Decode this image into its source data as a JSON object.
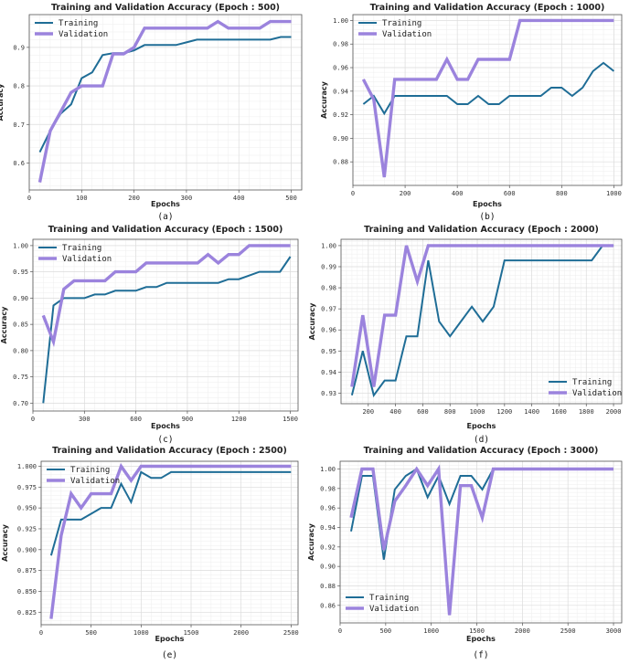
{
  "colors": {
    "training": "#1f6d96",
    "validation": "#9b83dd"
  },
  "chart_data": [
    {
      "type": "line",
      "panel": "(a)",
      "title": "Training and Validation Accuracy (Epoch : 500)",
      "xlabel": "Epochs",
      "ylabel": "Accuracy",
      "xlim": [
        0,
        520
      ],
      "ylim": [
        0.53,
        0.985
      ],
      "xticks": [
        0,
        100,
        200,
        300,
        400,
        500
      ],
      "xtick_labels": [
        "0",
        "100",
        "200",
        "300",
        "400",
        "500"
      ],
      "yticks": [
        0.6,
        0.7,
        0.8,
        0.9
      ],
      "ytick_labels": [
        "0.6",
        "0.7",
        "0.8",
        "0.9"
      ],
      "legend": "top-left",
      "series": [
        {
          "name": "Training",
          "key": "training",
          "x": [
            20,
            40,
            60,
            80,
            100,
            120,
            140,
            160,
            180,
            200,
            220,
            240,
            260,
            280,
            300,
            320,
            340,
            360,
            380,
            400,
            420,
            440,
            460,
            480,
            500
          ],
          "y": [
            0.628,
            0.683,
            0.728,
            0.752,
            0.82,
            0.835,
            0.88,
            0.885,
            0.885,
            0.892,
            0.906,
            0.906,
            0.906,
            0.906,
            0.913,
            0.92,
            0.92,
            0.92,
            0.92,
            0.92,
            0.92,
            0.92,
            0.92,
            0.927,
            0.927
          ]
        },
        {
          "name": "Validation",
          "key": "validation",
          "x": [
            20,
            40,
            60,
            80,
            100,
            120,
            140,
            160,
            180,
            200,
            220,
            240,
            260,
            280,
            300,
            320,
            340,
            360,
            380,
            400,
            420,
            440,
            460,
            480,
            500
          ],
          "y": [
            0.55,
            0.683,
            0.733,
            0.783,
            0.8,
            0.8,
            0.8,
            0.883,
            0.883,
            0.9,
            0.95,
            0.95,
            0.95,
            0.95,
            0.95,
            0.95,
            0.95,
            0.967,
            0.95,
            0.95,
            0.95,
            0.95,
            0.967,
            0.967,
            0.967
          ]
        }
      ]
    },
    {
      "type": "line",
      "panel": "(b)",
      "title": "Training and Validation Accuracy (Epoch : 1000)",
      "xlabel": "Epochs",
      "ylabel": "Accuracy",
      "xlim": [
        0,
        1030
      ],
      "ylim": [
        0.86,
        1.005
      ],
      "xticks": [
        0,
        200,
        400,
        600,
        800,
        1000
      ],
      "xtick_labels": [
        "0",
        "200",
        "400",
        "600",
        "800",
        "1000"
      ],
      "yticks": [
        0.88,
        0.9,
        0.92,
        0.94,
        0.96,
        0.98,
        1.0
      ],
      "ytick_labels": [
        "0.88",
        "0.90",
        "0.92",
        "0.94",
        "0.96",
        "0.98",
        "1.00"
      ],
      "legend": "top-left",
      "series": [
        {
          "name": "Training",
          "key": "training",
          "x": [
            40,
            80,
            120,
            160,
            200,
            240,
            280,
            320,
            360,
            400,
            440,
            480,
            520,
            560,
            600,
            640,
            680,
            720,
            760,
            800,
            840,
            880,
            920,
            960,
            1000
          ],
          "y": [
            0.929,
            0.936,
            0.921,
            0.936,
            0.936,
            0.936,
            0.936,
            0.936,
            0.936,
            0.929,
            0.929,
            0.936,
            0.929,
            0.929,
            0.936,
            0.936,
            0.936,
            0.936,
            0.943,
            0.943,
            0.936,
            0.943,
            0.957,
            0.964,
            0.957
          ]
        },
        {
          "name": "Validation",
          "key": "validation",
          "x": [
            40,
            80,
            120,
            160,
            200,
            240,
            280,
            320,
            360,
            400,
            440,
            480,
            520,
            560,
            600,
            640,
            680,
            720,
            760,
            800,
            840,
            880,
            920,
            960,
            1000
          ],
          "y": [
            0.95,
            0.933,
            0.867,
            0.95,
            0.95,
            0.95,
            0.95,
            0.95,
            0.967,
            0.95,
            0.95,
            0.967,
            0.967,
            0.967,
            0.967,
            1.0,
            1.0,
            1.0,
            1.0,
            1.0,
            1.0,
            1.0,
            1.0,
            1.0,
            1.0
          ]
        }
      ]
    },
    {
      "type": "line",
      "panel": "(c)",
      "title": "Training and Validation Accuracy (Epoch : 1500)",
      "xlabel": "Epochs",
      "ylabel": "Accuracy",
      "xlim": [
        0,
        1545
      ],
      "ylim": [
        0.685,
        1.012
      ],
      "xticks": [
        0,
        300,
        600,
        900,
        1200,
        1500
      ],
      "xtick_labels": [
        "0",
        "300",
        "600",
        "900",
        "1200",
        "1500"
      ],
      "yticks": [
        0.7,
        0.75,
        0.8,
        0.85,
        0.9,
        0.95,
        1.0
      ],
      "ytick_labels": [
        "0.70",
        "0.75",
        "0.80",
        "0.85",
        "0.90",
        "0.95",
        "1.00"
      ],
      "legend": "top-left",
      "series": [
        {
          "name": "Training",
          "key": "training",
          "x": [
            60,
            120,
            180,
            240,
            300,
            360,
            420,
            480,
            540,
            600,
            660,
            720,
            780,
            840,
            900,
            960,
            1020,
            1080,
            1140,
            1200,
            1260,
            1320,
            1380,
            1440,
            1500
          ],
          "y": [
            0.7,
            0.886,
            0.9,
            0.9,
            0.9,
            0.907,
            0.907,
            0.914,
            0.914,
            0.914,
            0.921,
            0.921,
            0.929,
            0.929,
            0.929,
            0.929,
            0.929,
            0.929,
            0.936,
            0.936,
            0.943,
            0.95,
            0.95,
            0.95,
            0.979
          ]
        },
        {
          "name": "Validation",
          "key": "validation",
          "x": [
            60,
            120,
            180,
            240,
            300,
            360,
            420,
            480,
            540,
            600,
            660,
            720,
            780,
            840,
            900,
            960,
            1020,
            1080,
            1140,
            1200,
            1260,
            1320,
            1380,
            1440,
            1500
          ],
          "y": [
            0.867,
            0.817,
            0.917,
            0.933,
            0.933,
            0.933,
            0.933,
            0.95,
            0.95,
            0.95,
            0.967,
            0.967,
            0.967,
            0.967,
            0.967,
            0.967,
            0.983,
            0.967,
            0.983,
            0.983,
            1.0,
            1.0,
            1.0,
            1.0,
            1.0
          ]
        }
      ]
    },
    {
      "type": "line",
      "panel": "(d)",
      "title": "Training and Validation Accuracy (Epoch : 2000)",
      "xlabel": "Epochs",
      "ylabel": "Accuracy",
      "xlim": [
        0,
        2060
      ],
      "ylim": [
        0.925,
        1.003
      ],
      "xticks": [
        200,
        400,
        600,
        800,
        1000,
        1200,
        1400,
        1600,
        1800,
        2000
      ],
      "xtick_labels": [
        "200",
        "400",
        "600",
        "800",
        "1000",
        "1200",
        "1400",
        "1600",
        "1800",
        "2000"
      ],
      "yticks": [
        0.93,
        0.94,
        0.95,
        0.96,
        0.97,
        0.98,
        0.99,
        1.0
      ],
      "ytick_labels": [
        "0.93",
        "0.94",
        "0.95",
        "0.96",
        "0.97",
        "0.98",
        "0.99",
        "1.00"
      ],
      "legend": "bottom-right",
      "series": [
        {
          "name": "Training",
          "key": "training",
          "x": [
            80,
            160,
            240,
            320,
            400,
            480,
            560,
            640,
            720,
            800,
            880,
            960,
            1040,
            1120,
            1200,
            1280,
            1360,
            1440,
            1520,
            1600,
            1680,
            1760,
            1840,
            1920,
            2000
          ],
          "y": [
            0.929,
            0.95,
            0.929,
            0.936,
            0.936,
            0.957,
            0.957,
            0.993,
            0.964,
            0.957,
            0.964,
            0.971,
            0.964,
            0.971,
            0.993,
            0.993,
            0.993,
            0.993,
            0.993,
            0.993,
            0.993,
            0.993,
            0.993,
            1.0,
            1.0
          ]
        },
        {
          "name": "Validation",
          "key": "validation",
          "x": [
            80,
            160,
            240,
            320,
            400,
            480,
            560,
            640,
            720,
            800,
            880,
            960,
            1040,
            1120,
            1200,
            1280,
            1360,
            1440,
            1520,
            1600,
            1680,
            1760,
            1840,
            1920,
            2000
          ],
          "y": [
            0.933,
            0.967,
            0.933,
            0.967,
            0.967,
            1.0,
            0.983,
            1.0,
            1.0,
            1.0,
            1.0,
            1.0,
            1.0,
            1.0,
            1.0,
            1.0,
            1.0,
            1.0,
            1.0,
            1.0,
            1.0,
            1.0,
            1.0,
            1.0,
            1.0
          ]
        }
      ]
    },
    {
      "type": "line",
      "panel": "(e)",
      "title": "Training and Validation Accuracy (Epoch : 2500)",
      "xlabel": "Epochs",
      "ylabel": "Accuracy",
      "xlim": [
        0,
        2570
      ],
      "ylim": [
        0.81,
        1.006
      ],
      "xticks": [
        0,
        500,
        1000,
        1500,
        2000,
        2500
      ],
      "xtick_labels": [
        "0",
        "500",
        "1000",
        "1500",
        "2000",
        "2500"
      ],
      "yticks": [
        0.825,
        0.85,
        0.875,
        0.9,
        0.925,
        0.95,
        0.975,
        1.0
      ],
      "ytick_labels": [
        "0.825",
        "0.850",
        "0.875",
        "0.900",
        "0.925",
        "0.950",
        "0.975",
        "1.000"
      ],
      "legend": "top-left",
      "series": [
        {
          "name": "Training",
          "key": "training",
          "x": [
            100,
            200,
            300,
            400,
            500,
            600,
            700,
            800,
            900,
            1000,
            1100,
            1200,
            1300,
            1400,
            1500,
            1600,
            1700,
            1800,
            1900,
            2000,
            2100,
            2200,
            2300,
            2400,
            2500
          ],
          "y": [
            0.893,
            0.936,
            0.936,
            0.936,
            0.943,
            0.95,
            0.95,
            0.979,
            0.957,
            0.993,
            0.986,
            0.986,
            0.993,
            0.993,
            0.993,
            0.993,
            0.993,
            0.993,
            0.993,
            0.993,
            0.993,
            0.993,
            0.993,
            0.993,
            0.993
          ]
        },
        {
          "name": "Validation",
          "key": "validation",
          "x": [
            100,
            200,
            300,
            400,
            500,
            600,
            700,
            800,
            900,
            1000,
            1100,
            1200,
            1300,
            1400,
            1500,
            1600,
            1700,
            1800,
            1900,
            2000,
            2100,
            2200,
            2300,
            2400,
            2500
          ],
          "y": [
            0.817,
            0.917,
            0.967,
            0.95,
            0.967,
            0.967,
            0.967,
            1.0,
            0.983,
            1.0,
            1.0,
            1.0,
            1.0,
            1.0,
            1.0,
            1.0,
            1.0,
            1.0,
            1.0,
            1.0,
            1.0,
            1.0,
            1.0,
            1.0,
            1.0
          ]
        }
      ]
    },
    {
      "type": "line",
      "panel": "(f)",
      "title": "Training and Validation Accuracy (Epoch : 3000)",
      "xlabel": "Epochs",
      "ylabel": "Accuracy",
      "xlim": [
        0,
        3090
      ],
      "ylim": [
        0.842,
        1.008
      ],
      "xticks": [
        0,
        500,
        1000,
        1500,
        2000,
        2500,
        3000
      ],
      "xtick_labels": [
        "0",
        "500",
        "1000",
        "1500",
        "2000",
        "2500",
        "3000"
      ],
      "yticks": [
        0.86,
        0.88,
        0.9,
        0.92,
        0.94,
        0.96,
        0.98,
        1.0
      ],
      "ytick_labels": [
        "0.86",
        "0.88",
        "0.90",
        "0.92",
        "0.94",
        "0.96",
        "0.98",
        "1.00"
      ],
      "legend": "bottom-left",
      "series": [
        {
          "name": "Training",
          "key": "training",
          "x": [
            120,
            240,
            360,
            480,
            600,
            720,
            840,
            960,
            1080,
            1200,
            1320,
            1440,
            1560,
            1680,
            1800,
            1920,
            2040,
            2160,
            2280,
            2400,
            2520,
            2640,
            2760,
            2880,
            3000
          ],
          "y": [
            0.936,
            0.993,
            0.993,
            0.907,
            0.979,
            0.993,
            1.0,
            0.971,
            0.993,
            0.964,
            0.993,
            0.993,
            0.979,
            1.0,
            1.0,
            1.0,
            1.0,
            1.0,
            1.0,
            1.0,
            1.0,
            1.0,
            1.0,
            1.0,
            1.0
          ]
        },
        {
          "name": "Validation",
          "key": "validation",
          "x": [
            120,
            240,
            360,
            480,
            600,
            720,
            840,
            960,
            1080,
            1200,
            1320,
            1440,
            1560,
            1680,
            1800,
            1920,
            2040,
            2160,
            2280,
            2400,
            2520,
            2640,
            2760,
            2880,
            3000
          ],
          "y": [
            0.95,
            1.0,
            1.0,
            0.917,
            0.967,
            0.983,
            1.0,
            0.983,
            1.0,
            0.85,
            0.983,
            0.983,
            0.95,
            1.0,
            1.0,
            1.0,
            1.0,
            1.0,
            1.0,
            1.0,
            1.0,
            1.0,
            1.0,
            1.0,
            1.0
          ]
        }
      ]
    }
  ]
}
